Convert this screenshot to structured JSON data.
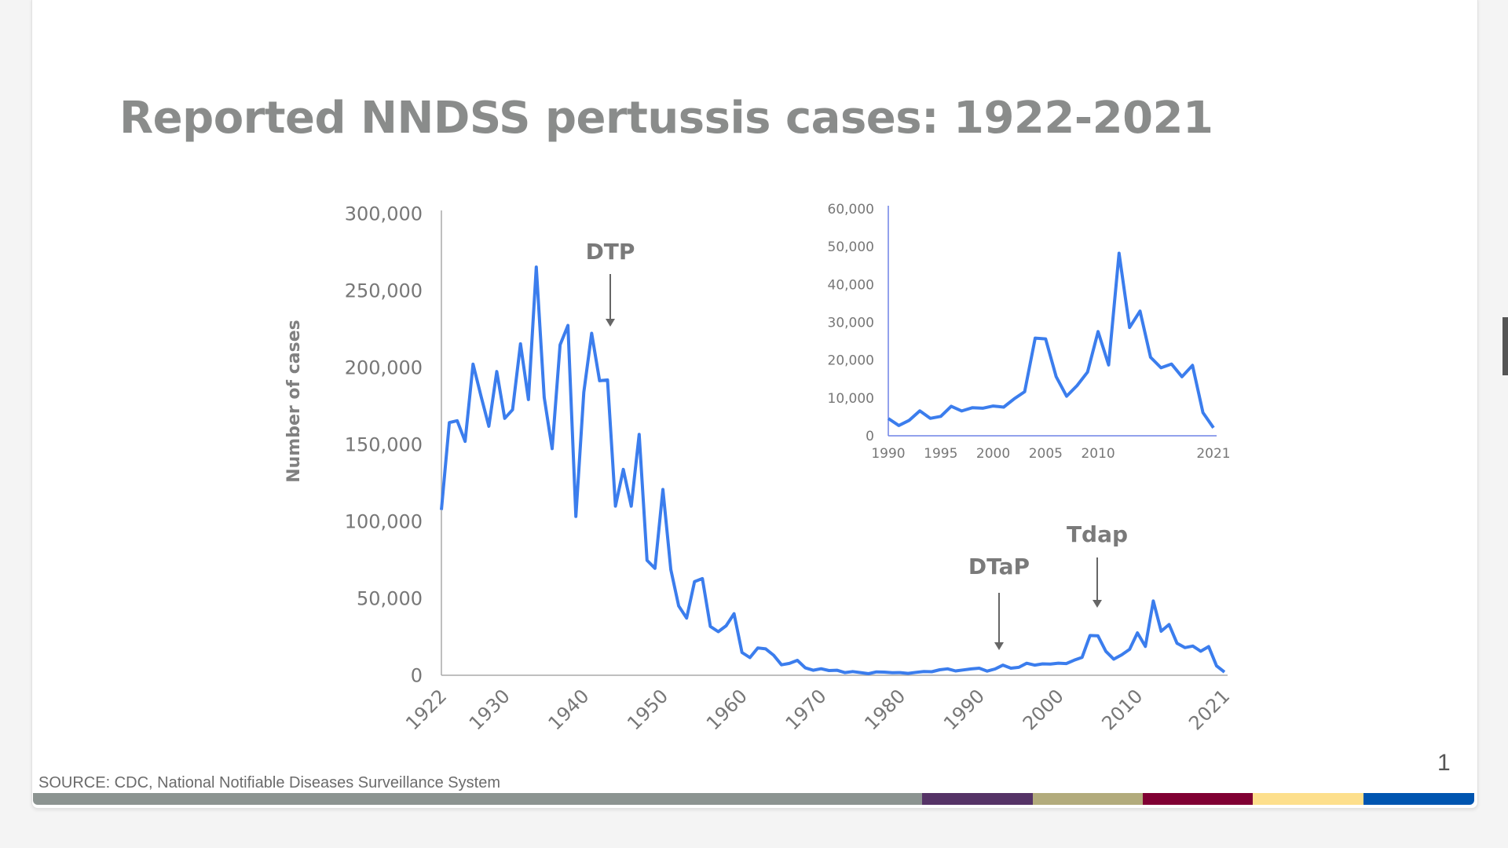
{
  "slide": {
    "title": "Reported NNDSS pertussis cases: 1922-2021",
    "source": "SOURCE:  CDC, National Notifiable Diseases Surveillance System",
    "page_number": "1",
    "footer_colors": [
      "#8c9491",
      "#553366",
      "#b2ab7c",
      "#800033",
      "#fddf8c",
      "#0055b0"
    ]
  },
  "chart_data": [
    {
      "type": "line",
      "title": "",
      "xlabel": "",
      "ylabel": "Number of cases",
      "ylim": [
        0,
        300000
      ],
      "xlim": [
        1922,
        2021
      ],
      "yticks": [
        "0",
        "50,000",
        "100,000",
        "150,000",
        "200,000",
        "250,000",
        "300,000"
      ],
      "ytick_values": [
        0,
        50000,
        100000,
        150000,
        200000,
        250000,
        300000
      ],
      "xticks": [
        "1922",
        "1930",
        "1940",
        "1950",
        "1960",
        "1970",
        "1980",
        "1990",
        "2000",
        "2010",
        "2021"
      ],
      "xtick_values": [
        1922,
        1930,
        1940,
        1950,
        1960,
        1970,
        1980,
        1990,
        2000,
        2010,
        2021
      ],
      "line_color": "#3b7ded",
      "grid": false,
      "annotations": [
        {
          "text": "DTP",
          "x": 1944
        },
        {
          "text": "DTaP",
          "x": 1991
        },
        {
          "text": "Tdap",
          "x": 2005
        }
      ],
      "x_start": 1922,
      "values": [
        107473,
        164191,
        165418,
        152003,
        202210,
        181411,
        161799,
        197371,
        166914,
        172559,
        215343,
        179135,
        265269,
        180518,
        147237,
        214652,
        227319,
        103188,
        183866,
        222202,
        191383,
        191890,
        109873,
        133792,
        109860,
        156517,
        74715,
        69479,
        120718,
        68687,
        45030,
        37129,
        60886,
        62786,
        31732,
        28295,
        32148,
        40005,
        14809,
        11468,
        17749,
        17135,
        13005,
        6799,
        7717,
        9718,
        4810,
        3285,
        4249,
        3036,
        3287,
        1759,
        2402,
        1738,
        1010,
        2177,
        2063,
        1623,
        1730,
        1248,
        1895,
        2463,
        2276,
        3589,
        4195,
        2823,
        3450,
        4157,
        4570,
        2719,
        4083,
        6586,
        4617,
        5137,
        7796,
        6564,
        7405,
        7288,
        7867,
        7580,
        9771,
        11647,
        25827,
        25616,
        15632,
        10454,
        13278,
        16858,
        27550,
        18719,
        48277,
        28639,
        32971,
        20762,
        17972,
        18975,
        15609,
        18617,
        6124,
        2116
      ]
    },
    {
      "type": "line",
      "title": "",
      "xlabel": "",
      "ylabel": "",
      "ylim": [
        0,
        60000
      ],
      "xlim": [
        1990,
        2021
      ],
      "yticks": [
        "0",
        "10,000",
        "20,000",
        "30,000",
        "40,000",
        "50,000",
        "60,000"
      ],
      "ytick_values": [
        0,
        10000,
        20000,
        30000,
        40000,
        50000,
        60000
      ],
      "xticks": [
        "1990",
        "1995",
        "2000",
        "2005",
        "2010",
        "2021"
      ],
      "xtick_values": [
        1990,
        1995,
        2000,
        2005,
        2010,
        2021
      ],
      "line_color": "#3b7ded",
      "axis_color": "#6f82e6",
      "x_start": 1990,
      "values": [
        4570,
        2719,
        4083,
        6586,
        4617,
        5137,
        7796,
        6564,
        7405,
        7288,
        7867,
        7580,
        9771,
        11647,
        25827,
        25616,
        15632,
        10454,
        13278,
        16858,
        27550,
        18719,
        48277,
        28639,
        32971,
        20762,
        17972,
        18975,
        15609,
        18617,
        6124,
        2116
      ]
    }
  ]
}
